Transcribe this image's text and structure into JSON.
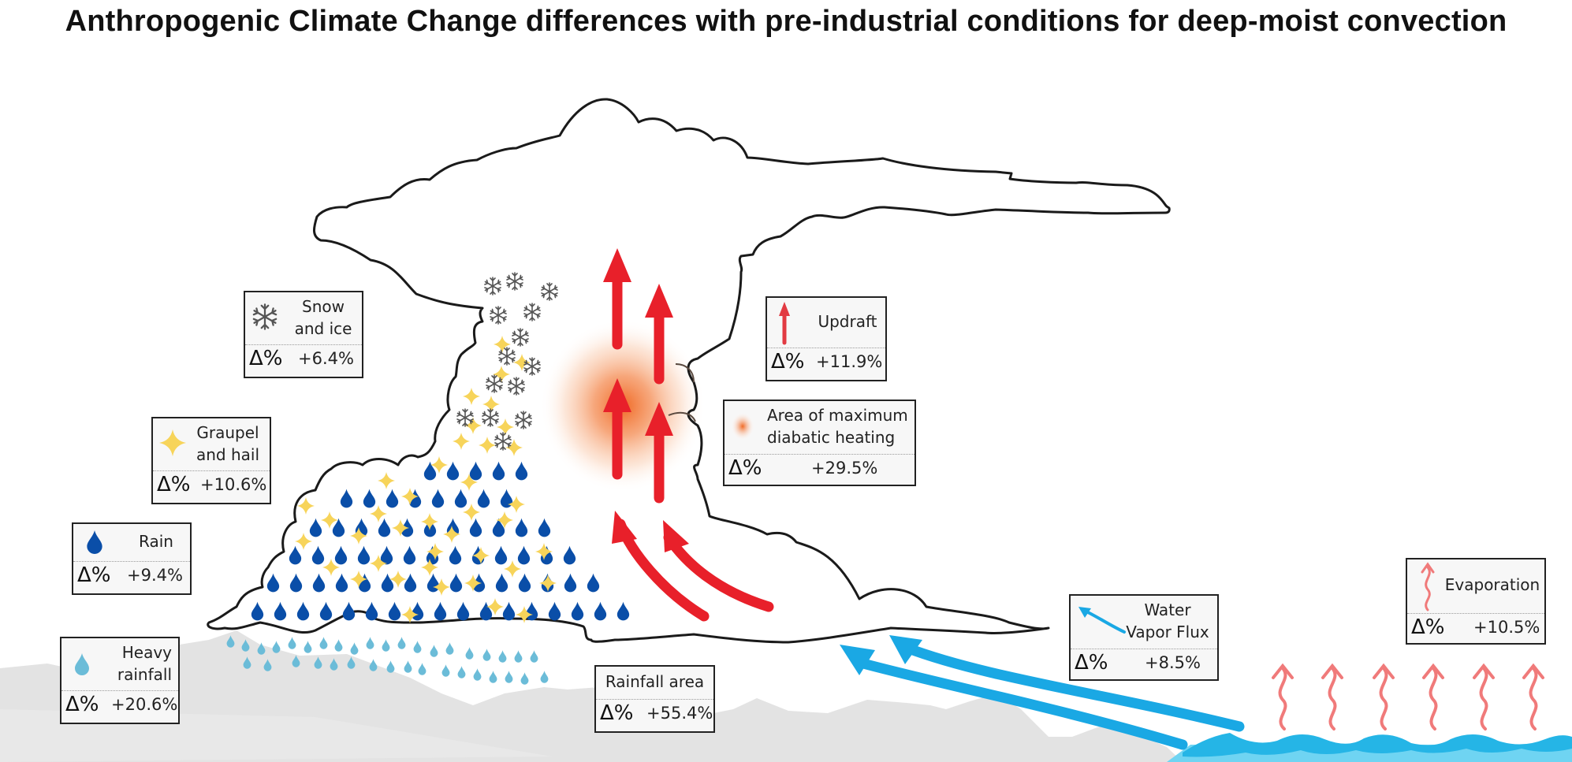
{
  "title": "Anthropogenic Climate Change differences with pre-industrial conditions for deep-moist convection",
  "delta_symbol": "Δ%",
  "colors": {
    "cloud_outline": "#1a1a1a",
    "updraft_red": "#e8202a",
    "heating_orange": "#f07030",
    "rain_blue": "#0a4ea8",
    "heavy_rain_blue": "#6bbcd8",
    "graupel_yellow": "#f7d45a",
    "snow_gray": "#555555",
    "vapor_blue": "#1aa8e4",
    "evaporation_pink": "#f07a7a",
    "water_dark": "#25b5e6",
    "water_light": "#6fd4f2",
    "mountain_gray": "#e3e3e3"
  },
  "legends": {
    "snow": {
      "label_line1": "Snow",
      "label_line2": "and ice",
      "value": "+6.4%",
      "icon": "snowflake-icon"
    },
    "graupel": {
      "label_line1": "Graupel",
      "label_line2": "and hail",
      "value": "+10.6%",
      "icon": "graupel-star-icon"
    },
    "rain": {
      "label_line1": "Rain",
      "value": "+9.4%",
      "icon": "raindrop-icon"
    },
    "heavy_rain": {
      "label_line1": "Heavy",
      "label_line2": "rainfall",
      "value": "+20.6%",
      "icon": "light-raindrop-icon"
    },
    "rainfall_area": {
      "label_line1": "Rainfall area",
      "value": "+55.4%"
    },
    "updraft": {
      "label_line1": "Updraft",
      "value": "+11.9%",
      "icon": "red-up-arrow-icon"
    },
    "heating": {
      "label_line1": "Area of maximum",
      "label_line2": "diabatic heating",
      "value": "+29.5%",
      "icon": "heat-blob-icon"
    },
    "vapor": {
      "label_line1": "Water",
      "label_line2": "Vapor Flux",
      "value": "+8.5%",
      "icon": "blue-curved-arrow-icon"
    },
    "evaporation": {
      "label_line1": "Evaporation",
      "value": "+10.5%",
      "icon": "wavy-arrow-icon"
    }
  }
}
